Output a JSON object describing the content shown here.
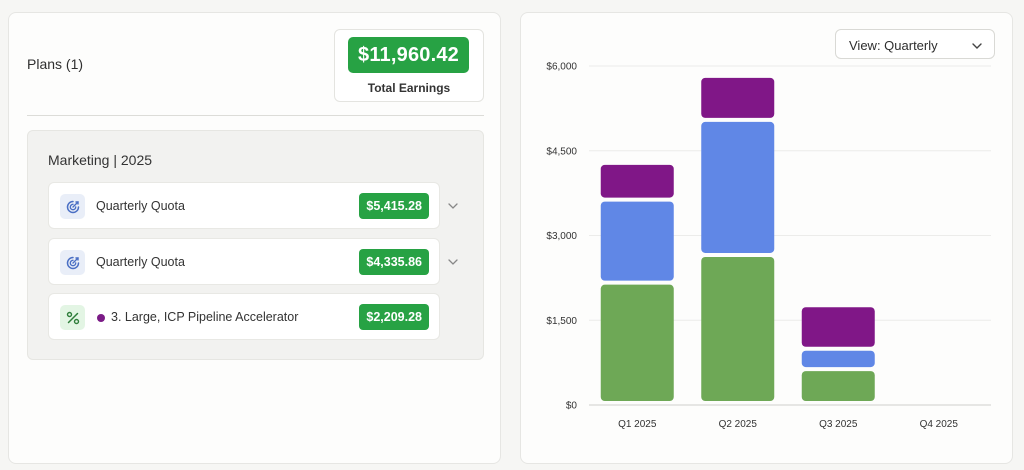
{
  "left": {
    "plans_title": "Plans (1)",
    "total_earnings": {
      "amount": "$11,960.42",
      "label": "Total Earnings"
    },
    "group": {
      "title": "Marketing | 2025",
      "rows": [
        {
          "label": "Quarterly Quota",
          "amount": "$5,415.28",
          "icon": "quota-target-icon",
          "expandable": true
        },
        {
          "label": "Quarterly Quota",
          "amount": "$4,335.86",
          "icon": "quota-target-icon",
          "expandable": true
        },
        {
          "label": "3. Large, ICP Pipeline Accelerator",
          "amount": "$2,209.28",
          "icon": "percent-icon",
          "expandable": false,
          "dot_color": "#7b1b86"
        }
      ]
    }
  },
  "right": {
    "view_select": {
      "label": "View: Quarterly"
    }
  },
  "colors": {
    "accent_green": "#27a244",
    "series_green": "#6ea856",
    "series_blue": "#6087e6",
    "series_purple": "#801787"
  },
  "chart_data": {
    "type": "bar",
    "stacked": true,
    "categories": [
      "Q1 2025",
      "Q2 2025",
      "Q3 2025",
      "Q4 2025"
    ],
    "y_tick_labels": [
      "$0",
      "$1,500",
      "$3,000",
      "$4,500",
      "$6,000"
    ],
    "y_ticks": [
      0,
      1500,
      3000,
      4500,
      6000
    ],
    "ylim": [
      0,
      6000
    ],
    "grid": true,
    "legend": "none",
    "series": [
      {
        "values": [
          2130,
          2620,
          600,
          0
        ],
        "color": "#6ea856"
      },
      {
        "values": [
          1470,
          2390,
          360,
          0
        ],
        "color": "#6087e6"
      },
      {
        "values": [
          650,
          780,
          770,
          0
        ],
        "color": "#801787"
      }
    ]
  }
}
